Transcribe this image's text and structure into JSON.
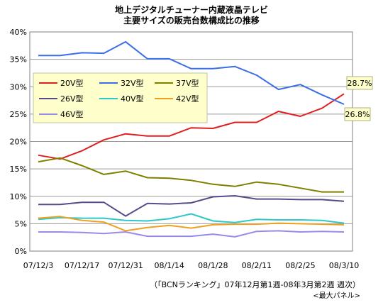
{
  "chart_data": {
    "type": "line",
    "title_line1": "地上デジタルチューナー内蔵液晶テレビ",
    "title_line2": "主要サイズの販売台数構成比の推移",
    "x": [
      "07/12/3",
      "07/12/10",
      "07/12/17",
      "07/12/24",
      "07/12/31",
      "08/1/7",
      "08/1/14",
      "08/1/21",
      "08/1/28",
      "08/2/4",
      "08/2/11",
      "08/2/18",
      "08/2/25",
      "08/3/3",
      "08/3/10"
    ],
    "x_tick_labels": [
      "07/12/3",
      "07/12/17",
      "07/12/31",
      "08/1/14",
      "08/1/28",
      "08/2/11",
      "08/2/25",
      "08/3/10"
    ],
    "y_tick_labels": [
      "0%",
      "5%",
      "10%",
      "15%",
      "20%",
      "25%",
      "30%",
      "35%",
      "40%"
    ],
    "ylim": [
      0,
      40
    ],
    "grid": true,
    "legend_position": "top-left",
    "series": [
      {
        "name": "20V型",
        "color": "#e02020",
        "values": [
          17.5,
          16.8,
          18.3,
          20.3,
          21.4,
          21.0,
          21.0,
          22.5,
          22.4,
          23.5,
          23.5,
          25.5,
          24.6,
          26.1,
          28.7
        ]
      },
      {
        "name": "32V型",
        "color": "#3a6ee8",
        "values": [
          35.7,
          35.7,
          36.2,
          36.1,
          38.2,
          35.1,
          35.1,
          33.3,
          33.3,
          33.7,
          32.1,
          29.5,
          30.4,
          28.5,
          26.8
        ]
      },
      {
        "name": "37V型",
        "color": "#808000",
        "values": [
          16.3,
          17.0,
          15.6,
          14.0,
          14.6,
          13.4,
          13.3,
          12.9,
          12.2,
          11.8,
          12.6,
          12.2,
          11.5,
          10.8,
          10.8
        ]
      },
      {
        "name": "26V型",
        "color": "#5a4a8a",
        "values": [
          8.5,
          8.5,
          8.9,
          8.9,
          6.4,
          8.7,
          8.6,
          8.8,
          9.9,
          10.1,
          9.5,
          9.5,
          9.4,
          9.4,
          9.1
        ]
      },
      {
        "name": "40V型",
        "color": "#2ec8c8",
        "values": [
          5.8,
          6.1,
          6.0,
          6.0,
          5.6,
          5.5,
          5.9,
          6.8,
          5.5,
          5.2,
          5.8,
          5.7,
          5.7,
          5.6,
          5.1
        ]
      },
      {
        "name": "42V型",
        "color": "#f0a020",
        "values": [
          6.0,
          6.3,
          5.6,
          5.3,
          3.7,
          4.3,
          4.7,
          4.2,
          4.8,
          4.9,
          4.9,
          5.1,
          5.0,
          4.9,
          4.8
        ]
      },
      {
        "name": "46V型",
        "color": "#9a8ae8",
        "values": [
          3.5,
          3.5,
          3.4,
          3.2,
          3.5,
          2.7,
          2.7,
          2.7,
          3.1,
          2.6,
          3.6,
          3.7,
          3.5,
          3.6,
          3.5
        ]
      }
    ],
    "annotations": [
      {
        "label": "28.7%",
        "series": "20V型"
      },
      {
        "label": "26.8%",
        "series": "32V型"
      }
    ]
  },
  "footer": {
    "source": "（「BCNランキング」07年12月第1週-08年3月第2週 週次）",
    "panel": "<最大パネル>"
  }
}
